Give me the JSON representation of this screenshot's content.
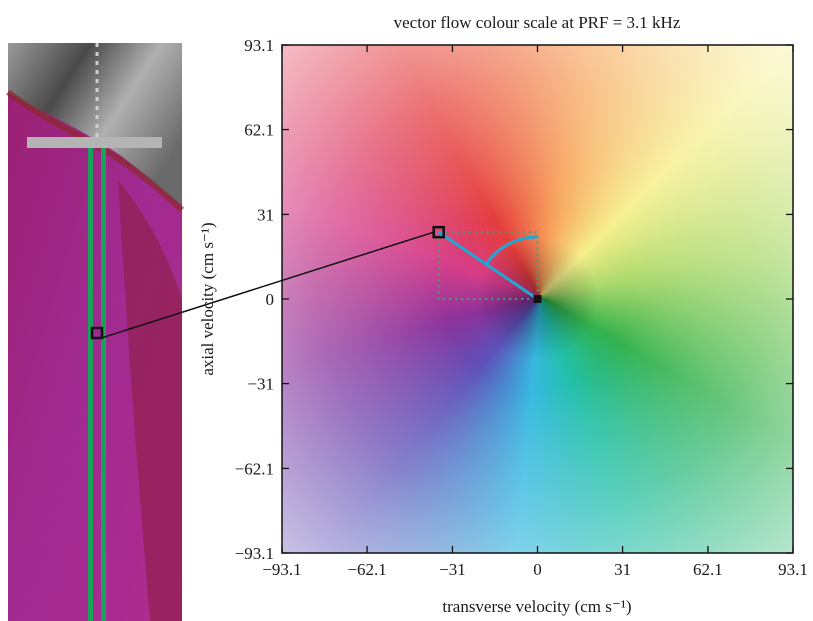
{
  "chart_data": {
    "type": "heatmap",
    "title": "vector flow colour scale at PRF = 3.1 kHz",
    "xlabel": "transverse velocity (cm s⁻¹)",
    "ylabel": "axial velocity (cm s⁻¹)",
    "xlim": [
      -93.1,
      93.1
    ],
    "ylim": [
      -93.1,
      93.1
    ],
    "x_ticks": [
      -93.1,
      -62.1,
      -31,
      0,
      31,
      62.1,
      93.1
    ],
    "y_ticks": [
      -93.1,
      -62.1,
      -31,
      0,
      31,
      62.1,
      93.1
    ],
    "x_tick_labels": [
      "−93.1",
      "−62.1",
      "−31",
      "0",
      "31",
      "62.1",
      "93.1"
    ],
    "y_tick_labels": [
      "−93.1",
      "−62.1",
      "−31",
      "0",
      "31",
      "62.1",
      "93.1"
    ],
    "grid": false,
    "colour_scale": "hue = flow direction, saturation = speed magnitude",
    "selected_vector": {
      "x": -36,
      "y": 24.5
    },
    "marker_colours": {
      "vector": "#1fa8d6",
      "component_box": "#4a9e7a",
      "markers": "#111111"
    }
  },
  "side_panel": {
    "description_colours": {
      "tissue": "#8a8a8a",
      "flow": "#a0268a",
      "guide_lines": "#19a35a",
      "gate_bar": "#b4b4b4"
    },
    "picked_point_depth_fraction": 0.51
  }
}
